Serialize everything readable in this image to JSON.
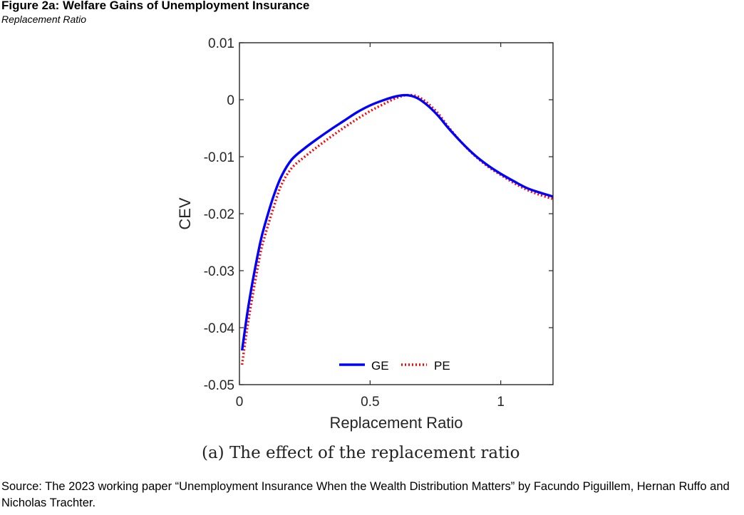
{
  "header": {
    "title": "Figure 2a: Welfare Gains of Unemployment Insurance",
    "subtitle": "Replacement Ratio"
  },
  "chart_data": {
    "type": "line",
    "xlabel": "Replacement Ratio",
    "ylabel": "CEV",
    "xlim": [
      0,
      1.2
    ],
    "ylim": [
      -0.05,
      0.01
    ],
    "xticks": [
      0,
      0.5,
      1
    ],
    "xtick_labels": [
      "0",
      "0.5",
      "1"
    ],
    "yticks": [
      0.01,
      0,
      -0.01,
      -0.02,
      -0.03,
      -0.04,
      -0.05
    ],
    "ytick_labels": [
      "0.01",
      "0",
      "-0.01",
      "-0.02",
      "-0.03",
      "-0.04",
      "-0.05"
    ],
    "grid": false,
    "legend_position": "bottom-center",
    "series": [
      {
        "name": "GE",
        "color": "#0000ff",
        "style": "solid",
        "x": [
          0.01,
          0.03,
          0.05,
          0.08,
          0.1,
          0.13,
          0.16,
          0.2,
          0.25,
          0.3,
          0.35,
          0.4,
          0.45,
          0.5,
          0.55,
          0.6,
          0.64,
          0.68,
          0.72,
          0.76,
          0.8,
          0.85,
          0.9,
          0.95,
          1.0,
          1.05,
          1.1,
          1.15,
          1.2
        ],
        "y": [
          -0.044,
          -0.0375,
          -0.032,
          -0.025,
          -0.0215,
          -0.017,
          -0.0135,
          -0.0105,
          -0.0085,
          -0.0068,
          -0.0052,
          -0.0037,
          -0.0022,
          -0.001,
          -0.0001,
          0.0006,
          0.0008,
          0.0003,
          -0.001,
          -0.0028,
          -0.005,
          -0.0075,
          -0.0097,
          -0.0115,
          -0.013,
          -0.0143,
          -0.0155,
          -0.0163,
          -0.017
        ]
      },
      {
        "name": "PE",
        "color": "#ff0000",
        "style": "dotted",
        "x": [
          0.01,
          0.03,
          0.05,
          0.08,
          0.1,
          0.13,
          0.16,
          0.2,
          0.25,
          0.3,
          0.35,
          0.4,
          0.45,
          0.5,
          0.55,
          0.6,
          0.64,
          0.68,
          0.72,
          0.76,
          0.8,
          0.85,
          0.9,
          0.95,
          1.0,
          1.05,
          1.1,
          1.15,
          1.2
        ],
        "y": [
          -0.0465,
          -0.04,
          -0.0345,
          -0.027,
          -0.0235,
          -0.019,
          -0.015,
          -0.012,
          -0.01,
          -0.0082,
          -0.0065,
          -0.0049,
          -0.0034,
          -0.002,
          -0.0008,
          0.0003,
          0.0008,
          0.0006,
          -0.0006,
          -0.0024,
          -0.0048,
          -0.0075,
          -0.0098,
          -0.0117,
          -0.0132,
          -0.0146,
          -0.0158,
          -0.0167,
          -0.0174
        ]
      }
    ]
  },
  "caption": "(a) The effect of the replacement ratio",
  "source": "Source: The 2023 working paper “Unemployment Insurance When the Wealth Distribution Matters” by Facundo Piguillem, Hernan Ruffo and Nicholas Trachter."
}
